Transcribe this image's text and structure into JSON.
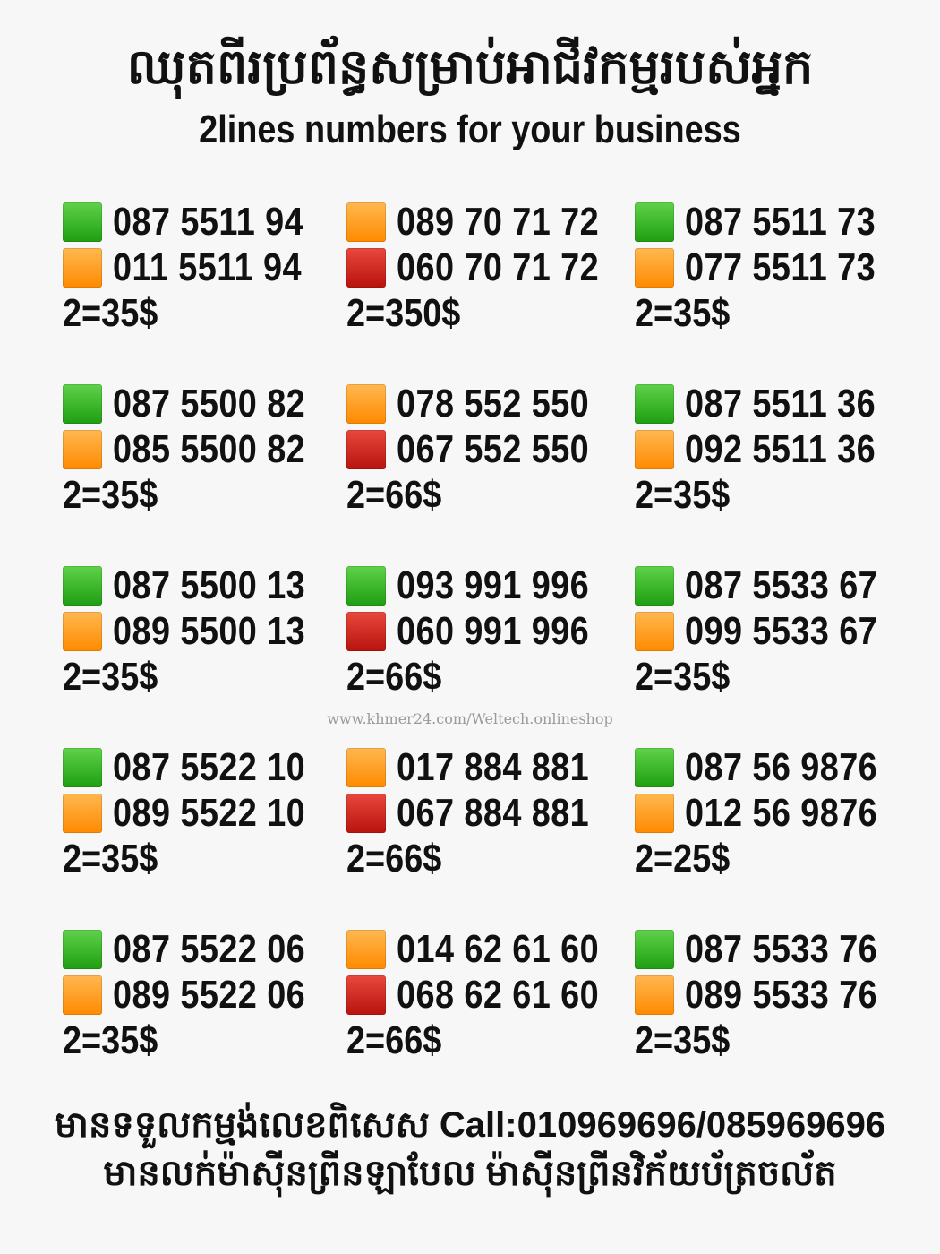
{
  "header": {
    "title_khmer": "ឈុតពីរប្រព័ន្ធសម្រាប់អាជីវកម្មរបស់អ្នក",
    "title_english": "2lines numbers for your business"
  },
  "colors": {
    "green": "#2db21a",
    "orange": "#ff9a1a",
    "red": "#d0201a"
  },
  "groups": [
    {
      "lines": [
        {
          "color": "green",
          "number": "087 5511 94"
        },
        {
          "color": "orange",
          "number": "011 5511 94"
        }
      ],
      "price": "2=35$"
    },
    {
      "lines": [
        {
          "color": "orange",
          "number": "089 70 71 72"
        },
        {
          "color": "red",
          "number": "060 70 71 72"
        }
      ],
      "price": "2=350$"
    },
    {
      "lines": [
        {
          "color": "green",
          "number": "087 5511 73"
        },
        {
          "color": "orange",
          "number": "077 5511 73"
        }
      ],
      "price": "2=35$"
    },
    {
      "lines": [
        {
          "color": "green",
          "number": "087 5500 82"
        },
        {
          "color": "orange",
          "number": "085 5500 82"
        }
      ],
      "price": "2=35$"
    },
    {
      "lines": [
        {
          "color": "orange",
          "number": "078 552 550"
        },
        {
          "color": "red",
          "number": "067 552 550"
        }
      ],
      "price": "2=66$"
    },
    {
      "lines": [
        {
          "color": "green",
          "number": "087 5511 36"
        },
        {
          "color": "orange",
          "number": "092 5511 36"
        }
      ],
      "price": "2=35$"
    },
    {
      "lines": [
        {
          "color": "green",
          "number": "087 5500 13"
        },
        {
          "color": "orange",
          "number": "089 5500 13"
        }
      ],
      "price": "2=35$"
    },
    {
      "lines": [
        {
          "color": "green",
          "number": "093 991 996"
        },
        {
          "color": "red",
          "number": "060 991 996"
        }
      ],
      "price": "2=66$"
    },
    {
      "lines": [
        {
          "color": "green",
          "number": "087 5533 67"
        },
        {
          "color": "orange",
          "number": "099 5533 67"
        }
      ],
      "price": "2=35$"
    },
    {
      "lines": [
        {
          "color": "green",
          "number": "087 5522 10"
        },
        {
          "color": "orange",
          "number": "089 5522 10"
        }
      ],
      "price": "2=35$"
    },
    {
      "lines": [
        {
          "color": "orange",
          "number": "017 884 881"
        },
        {
          "color": "red",
          "number": "067 884 881"
        }
      ],
      "price": "2=66$"
    },
    {
      "lines": [
        {
          "color": "green",
          "number": "087 56 9876"
        },
        {
          "color": "orange",
          "number": "012 56 9876"
        }
      ],
      "price": "2=25$"
    },
    {
      "lines": [
        {
          "color": "green",
          "number": "087 5522 06"
        },
        {
          "color": "orange",
          "number": "089 5522 06"
        }
      ],
      "price": "2=35$"
    },
    {
      "lines": [
        {
          "color": "orange",
          "number": "014 62 61 60"
        },
        {
          "color": "red",
          "number": "068 62 61 60"
        }
      ],
      "price": "2=66$"
    },
    {
      "lines": [
        {
          "color": "green",
          "number": "087 5533 76"
        },
        {
          "color": "orange",
          "number": "089 5533 76"
        }
      ],
      "price": "2=35$"
    }
  ],
  "watermark": "www.khmer24.com/Weltech.onlineshop",
  "footer": {
    "line1": "មានទទួលកម្មង់លេខពិសេស Call:010969696/085969696",
    "line2": "មានលក់ម៉ាស៊ីនព្រីនឡាបែល ម៉ាស៊ីនព្រីនវិក័យប័ត្រចល័ត"
  }
}
